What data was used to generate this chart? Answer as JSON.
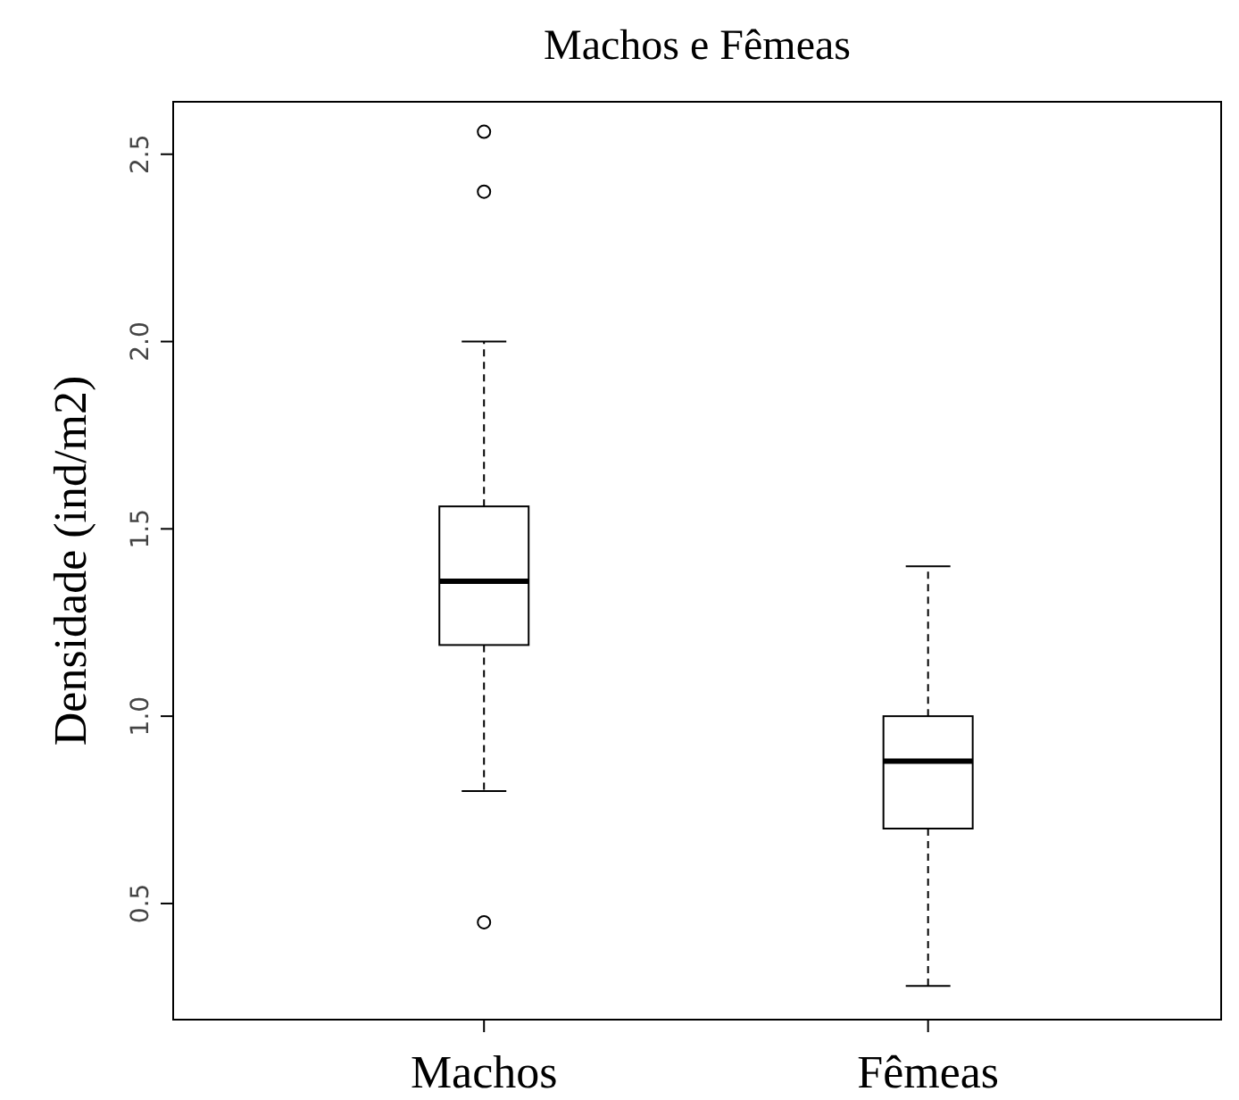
{
  "chart_data": {
    "type": "box",
    "title": "Machos e Fêmeas",
    "ylabel": "Densidade (ind/m2)",
    "categories": [
      "Machos",
      "Fêmeas"
    ],
    "boxes": [
      {
        "low": 0.8,
        "q1": 1.19,
        "median": 1.36,
        "q3": 1.56,
        "high": 2.0,
        "outliers": [
          2.56,
          2.4,
          0.45
        ]
      },
      {
        "low": 0.28,
        "q1": 0.7,
        "median": 0.88,
        "q3": 1.0,
        "high": 1.4
      }
    ],
    "ylim": [
      0.19,
      2.64
    ],
    "yticks": [
      {
        "value": 0.5,
        "label": "0.5"
      },
      {
        "value": 1,
        "label": "1.0"
      },
      {
        "value": 1.5,
        "label": "1.5"
      },
      {
        "value": 2,
        "label": "2.0"
      },
      {
        "value": 2.5,
        "label": "2.5"
      }
    ],
    "color": "#000000",
    "grid": false
  }
}
